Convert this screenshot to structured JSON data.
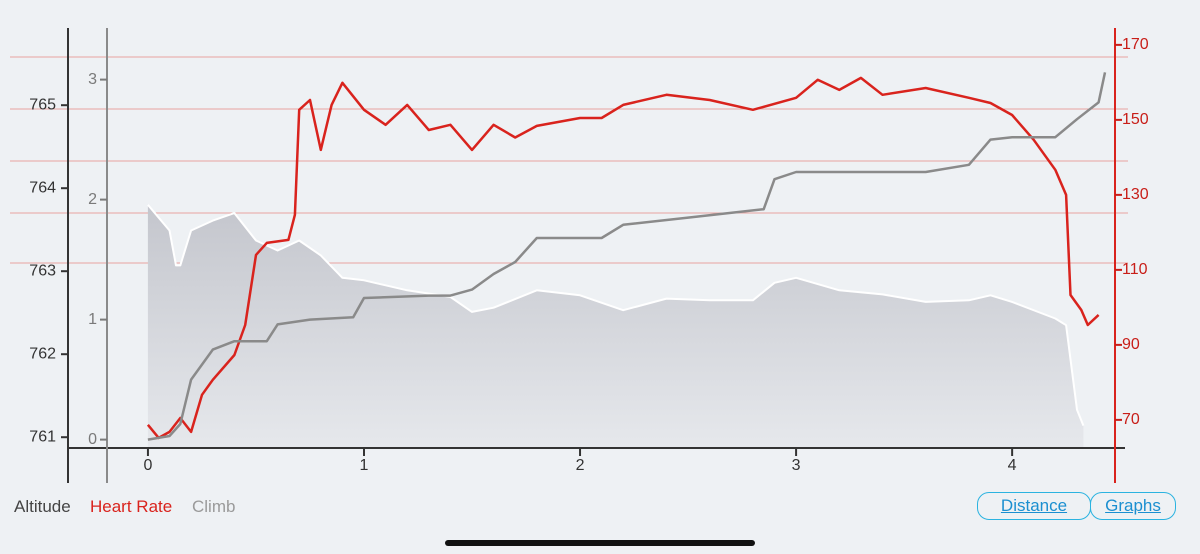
{
  "chart_data": {
    "type": "line",
    "xlim": [
      -0.37,
      4.49
    ],
    "xticks": [
      0,
      1,
      2,
      3,
      4
    ],
    "ylim": [
      760.87,
      765.93
    ],
    "yticks": [
      761,
      762,
      763,
      764,
      765
    ],
    "y2lim": [
      62.5,
      174.5
    ],
    "y2ticks": [
      70,
      90,
      110,
      130,
      150,
      170
    ],
    "y3lim": [
      -0.07,
      3.43
    ],
    "y3ticks": [
      0,
      1,
      2,
      3
    ],
    "series": [
      {
        "name": "Altitude",
        "color": "#ffffff",
        "axis": "y",
        "area": true,
        "x": [
          0,
          0.1,
          0.13,
          0.15,
          0.2,
          0.3,
          0.4,
          0.5,
          0.6,
          0.7,
          0.8,
          0.9,
          1.0,
          1.2,
          1.4,
          1.5,
          1.6,
          1.8,
          2.0,
          2.2,
          2.4,
          2.6,
          2.8,
          2.9,
          3.0,
          3.2,
          3.4,
          3.6,
          3.8,
          3.9,
          4.0,
          4.2,
          4.25,
          4.3,
          4.33
        ],
        "values": [
          763.8,
          763.49,
          763.07,
          763.07,
          763.49,
          763.61,
          763.7,
          763.37,
          763.25,
          763.37,
          763.19,
          762.92,
          762.89,
          762.77,
          762.69,
          762.51,
          762.56,
          762.77,
          762.71,
          762.53,
          762.67,
          762.65,
          762.65,
          762.86,
          762.92,
          762.77,
          762.72,
          762.63,
          762.65,
          762.71,
          762.63,
          762.43,
          762.35,
          761.33,
          761.14
        ]
      },
      {
        "name": "Heart Rate",
        "color": "#d9231d",
        "axis": "y2",
        "x": [
          0,
          0.05,
          0.1,
          0.15,
          0.2,
          0.25,
          0.3,
          0.4,
          0.45,
          0.5,
          0.55,
          0.65,
          0.68,
          0.7,
          0.75,
          0.8,
          0.85,
          0.9,
          1.0,
          1.1,
          1.2,
          1.3,
          1.4,
          1.5,
          1.6,
          1.7,
          1.8,
          2.0,
          2.1,
          2.2,
          2.4,
          2.6,
          2.8,
          3.0,
          3.1,
          3.2,
          3.3,
          3.4,
          3.6,
          3.8,
          3.9,
          4.0,
          4.1,
          4.2,
          4.25,
          4.27,
          4.32,
          4.35,
          4.4
        ],
        "values": [
          68.7,
          65.2,
          66.8,
          70.5,
          66.8,
          76.7,
          80.7,
          87.3,
          95.3,
          114,
          117.2,
          118,
          124.7,
          152.7,
          155.3,
          142,
          154,
          159.9,
          152.7,
          148.7,
          154,
          147.3,
          148.7,
          142,
          148.7,
          145.3,
          148.4,
          150.5,
          150.5,
          154,
          156.7,
          155.3,
          152.7,
          155.9,
          160.7,
          158,
          161.2,
          156.7,
          158.5,
          155.9,
          154.5,
          151.3,
          144.7,
          136.7,
          130,
          103.3,
          99.3,
          95.3,
          98
        ]
      },
      {
        "name": "Climb",
        "color": "#8a8a8a",
        "axis": "y3",
        "x": [
          0,
          0.1,
          0.15,
          0.2,
          0.3,
          0.4,
          0.55,
          0.6,
          0.75,
          0.95,
          1.0,
          1.3,
          1.4,
          1.5,
          1.6,
          1.7,
          1.8,
          2.1,
          2.2,
          2.5,
          2.85,
          2.9,
          3.0,
          3.6,
          3.8,
          3.9,
          4.0,
          4.2,
          4.3,
          4.4,
          4.43
        ],
        "values": [
          0,
          0.03,
          0.13,
          0.5,
          0.75,
          0.82,
          0.82,
          0.96,
          1.0,
          1.02,
          1.18,
          1.2,
          1.2,
          1.25,
          1.38,
          1.48,
          1.68,
          1.68,
          1.79,
          1.85,
          1.92,
          2.17,
          2.23,
          2.23,
          2.29,
          2.5,
          2.52,
          2.52,
          2.67,
          2.81,
          3.06
        ]
      }
    ],
    "buttons": [
      "Distance",
      "Graphs"
    ]
  }
}
